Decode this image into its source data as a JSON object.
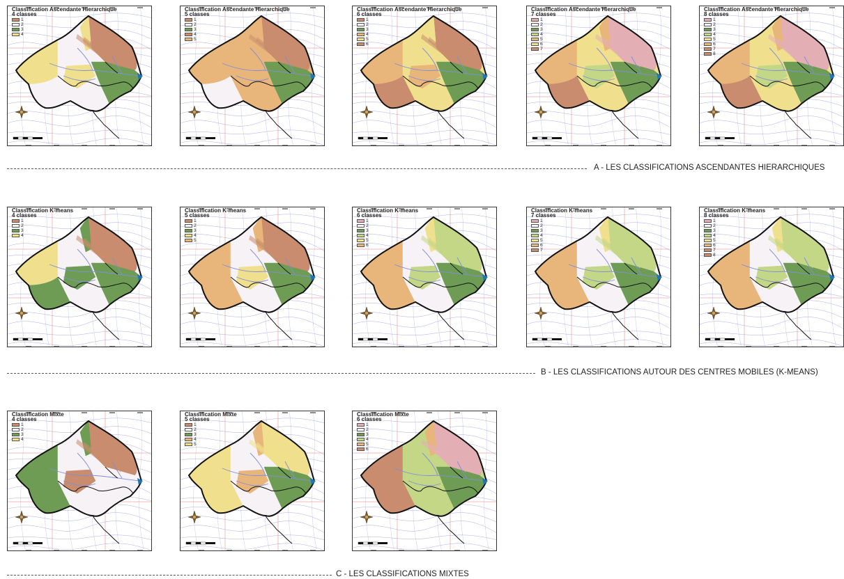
{
  "colors": {
    "white": "#f7f2f5",
    "yellow": "#f0e08d",
    "orange": "#e8b57a",
    "brown": "#c98c6e",
    "green": "#6e9c55",
    "lightgreen": "#c4d786",
    "pink": "#e3afb4",
    "contour": "#7a7ad6",
    "grid": "#e07a7a",
    "river": "#7f8fd8",
    "outlet": "#1e78b8"
  },
  "sections": [
    {
      "caption": "A - LES CLASSIFICATIONS ASCENDANTES HIERARCHIQUES",
      "maps": [
        {
          "title": "Classification Ascendante Hierarchique",
          "subtitle": "4 classes",
          "legend": [
            "1",
            "2",
            "3",
            "4"
          ]
        },
        {
          "title": "Classification Ascendante Hierarchique",
          "subtitle": "5 classes",
          "legend": [
            "1",
            "2",
            "3",
            "4",
            "5"
          ]
        },
        {
          "title": "Classification Ascendante Hierarchique",
          "subtitle": "6 classes",
          "legend": [
            "1",
            "2",
            "3",
            "4",
            "5",
            "6"
          ]
        },
        {
          "title": "Classification Ascendante Hierarchique",
          "subtitle": "7 classes",
          "legend": [
            "1",
            "2",
            "3",
            "4",
            "5",
            "6",
            "7"
          ]
        },
        {
          "title": "Classification Ascendante Hierarchique",
          "subtitle": "8 classes",
          "legend": [
            "1",
            "2",
            "3",
            "4",
            "5",
            "6",
            "7",
            "8"
          ]
        }
      ]
    },
    {
      "caption": "B - LES CLASSIFICATIONS AUTOUR DES CENTRES MOBILES (K-MEANS)",
      "maps": [
        {
          "title": "Classification K-means",
          "subtitle": "4 classes",
          "legend": [
            "1",
            "2",
            "3",
            "4"
          ]
        },
        {
          "title": "Classification K-means",
          "subtitle": "5 classes",
          "legend": [
            "1",
            "2",
            "3",
            "4",
            "5"
          ]
        },
        {
          "title": "Classification K-means",
          "subtitle": "6 classes",
          "legend": [
            "1",
            "2",
            "3",
            "4",
            "5",
            "6"
          ]
        },
        {
          "title": "Classification K-means",
          "subtitle": "7 classes",
          "legend": [
            "1",
            "2",
            "3",
            "4",
            "5",
            "6",
            "7"
          ]
        },
        {
          "title": "Classification K-means",
          "subtitle": "8 classes",
          "legend": [
            "1",
            "2",
            "3",
            "4",
            "5",
            "6",
            "7",
            "8"
          ]
        }
      ]
    },
    {
      "caption": "C - LES CLASSIFICATIONS MIXTES",
      "maps": [
        {
          "title": "Classification Mixte",
          "subtitle": "4 classes",
          "legend": [
            "1",
            "2",
            "3",
            "4"
          ]
        },
        {
          "title": "Classification Mixte",
          "subtitle": "5 classes",
          "legend": [
            "1",
            "2",
            "3",
            "4",
            "5"
          ]
        },
        {
          "title": "Classification Mixte",
          "subtitle": "6 classes",
          "legend": [
            "1",
            "2",
            "3",
            "4",
            "5",
            "6"
          ]
        }
      ]
    }
  ]
}
